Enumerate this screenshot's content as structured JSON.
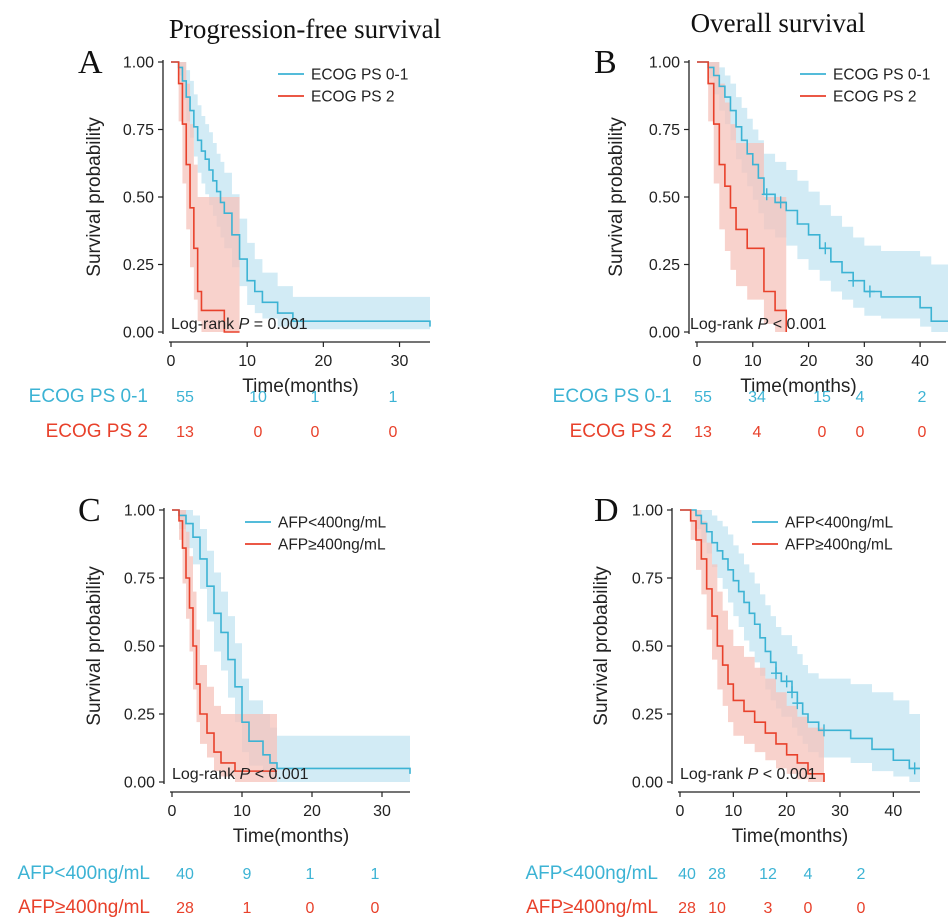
{
  "column_titles": [
    "Progression-free survival",
    "Overall survival"
  ],
  "colors": {
    "group1": "#3cb3d4",
    "group2": "#e8412b",
    "band1": "#bfe3f1",
    "band2": "#f6c3bb"
  },
  "chart_data": [
    {
      "type": "line",
      "letter": "A",
      "xlabel": "Time(months)",
      "ylabel": "Survival probability",
      "xlim": [
        0,
        34
      ],
      "ylim": [
        0,
        1
      ],
      "xticks": [
        0,
        10,
        20,
        30
      ],
      "yticks": [
        "0.00",
        "0.25",
        "0.50",
        "0.75",
        "1.00"
      ],
      "legend_position": "top-right",
      "logrank": {
        "prefix": "Log-rank",
        "p": "P",
        "value": " = 0.001"
      },
      "series": [
        {
          "name": "ECOG PS 0-1",
          "color": "#3cb3d4",
          "x": [
            0,
            1,
            1.5,
            2,
            2.5,
            3,
            3.5,
            4,
            4.5,
            5,
            5.5,
            6,
            6.5,
            7,
            8,
            9,
            10,
            11,
            12,
            14,
            16,
            34
          ],
          "y": [
            1.0,
            0.98,
            0.93,
            0.87,
            0.82,
            0.76,
            0.71,
            0.67,
            0.64,
            0.6,
            0.56,
            0.52,
            0.48,
            0.44,
            0.36,
            0.27,
            0.19,
            0.15,
            0.11,
            0.07,
            0.04,
            0.02
          ],
          "ci_upper": [
            1.0,
            1.0,
            1.0,
            0.97,
            0.93,
            0.88,
            0.84,
            0.8,
            0.77,
            0.74,
            0.7,
            0.66,
            0.63,
            0.59,
            0.51,
            0.42,
            0.33,
            0.27,
            0.22,
            0.17,
            0.13,
            0.12
          ],
          "ci_lower": [
            1.0,
            0.95,
            0.86,
            0.78,
            0.72,
            0.65,
            0.59,
            0.55,
            0.51,
            0.47,
            0.43,
            0.39,
            0.35,
            0.31,
            0.24,
            0.17,
            0.1,
            0.07,
            0.05,
            0.02,
            0.01,
            0.0
          ]
        },
        {
          "name": "ECOG PS 2",
          "color": "#e8412b",
          "x": [
            0,
            1,
            1.5,
            2,
            2.5,
            3,
            3.5,
            4,
            7,
            9
          ],
          "y": [
            1.0,
            0.92,
            0.77,
            0.62,
            0.46,
            0.31,
            0.15,
            0.08,
            0.0,
            0.0
          ],
          "ci_upper": [
            1.0,
            1.0,
            1.0,
            0.92,
            0.77,
            0.62,
            0.5,
            0.5,
            0.5,
            0.5
          ],
          "ci_lower": [
            1.0,
            0.78,
            0.55,
            0.38,
            0.24,
            0.12,
            0.04,
            0.0,
            0.0,
            0.0
          ]
        }
      ],
      "risk_table": {
        "times": [
          0,
          10,
          20,
          30
        ],
        "rows": [
          {
            "label": "ECOG PS 0-1",
            "color": "#3cb3d4",
            "values": [
              "55",
              "10",
              "1",
              "1"
            ]
          },
          {
            "label": "ECOG PS 2",
            "color": "#e8412b",
            "values": [
              "13",
              "0",
              "0",
              "0"
            ]
          }
        ]
      }
    },
    {
      "type": "line",
      "letter": "B",
      "xlabel": "Time(months)",
      "ylabel": "Survival probability",
      "xlim": [
        0,
        45
      ],
      "ylim": [
        0,
        1
      ],
      "xticks": [
        0,
        10,
        20,
        30,
        40
      ],
      "yticks": [
        "0.00",
        "0.25",
        "0.50",
        "0.75",
        "1.00"
      ],
      "legend_position": "top-right",
      "logrank": {
        "prefix": "Log-rank",
        "p": "P",
        "value": " < 0.001"
      },
      "series": [
        {
          "name": "ECOG PS 0-1",
          "color": "#3cb3d4",
          "x": [
            0,
            2,
            3,
            4,
            5,
            6,
            7,
            8,
            9,
            10,
            11,
            12,
            14,
            16,
            18,
            20,
            22,
            24,
            26,
            28,
            30,
            33,
            36,
            40,
            42,
            45
          ],
          "y": [
            1.0,
            0.98,
            0.95,
            0.91,
            0.87,
            0.82,
            0.76,
            0.71,
            0.66,
            0.62,
            0.57,
            0.51,
            0.48,
            0.45,
            0.4,
            0.36,
            0.31,
            0.26,
            0.22,
            0.19,
            0.15,
            0.13,
            0.13,
            0.09,
            0.04,
            0.04
          ],
          "ci_upper": [
            1.0,
            1.0,
            1.0,
            0.98,
            0.95,
            0.92,
            0.87,
            0.83,
            0.79,
            0.75,
            0.71,
            0.66,
            0.63,
            0.6,
            0.56,
            0.52,
            0.47,
            0.43,
            0.39,
            0.35,
            0.32,
            0.3,
            0.3,
            0.28,
            0.25,
            0.25
          ],
          "ci_lower": [
            1.0,
            0.94,
            0.88,
            0.82,
            0.77,
            0.71,
            0.64,
            0.59,
            0.54,
            0.49,
            0.44,
            0.38,
            0.35,
            0.32,
            0.27,
            0.23,
            0.19,
            0.15,
            0.12,
            0.09,
            0.06,
            0.05,
            0.05,
            0.02,
            0.0,
            0.0
          ],
          "censor_x": [
            12.5,
            15,
            23,
            28,
            31
          ]
        },
        {
          "name": "ECOG PS 2",
          "color": "#e8412b",
          "x": [
            0,
            2,
            3,
            4,
            5,
            6,
            7,
            9,
            12,
            14,
            16
          ],
          "y": [
            1.0,
            0.92,
            0.77,
            0.62,
            0.54,
            0.46,
            0.38,
            0.31,
            0.15,
            0.08,
            0.0
          ],
          "ci_upper": [
            1.0,
            1.0,
            1.0,
            0.92,
            0.85,
            0.77,
            0.7,
            0.7,
            0.5,
            0.5,
            0.5
          ],
          "ci_lower": [
            1.0,
            0.78,
            0.55,
            0.38,
            0.3,
            0.23,
            0.17,
            0.12,
            0.03,
            0.0,
            0.0
          ]
        }
      ],
      "risk_table": {
        "times": [
          0,
          10,
          20,
          30,
          40
        ],
        "rows": [
          {
            "label": "ECOG PS 0-1",
            "color": "#3cb3d4",
            "values": [
              "55",
              "34",
              "15",
              "4",
              "2"
            ]
          },
          {
            "label": "ECOG PS 2",
            "color": "#e8412b",
            "values": [
              "13",
              "4",
              "0",
              "0",
              "0"
            ]
          }
        ]
      }
    },
    {
      "type": "line",
      "letter": "C",
      "xlabel": "Time(months)",
      "ylabel": "Survival probability",
      "xlim": [
        0,
        34
      ],
      "ylim": [
        0,
        1
      ],
      "xticks": [
        0,
        10,
        20,
        30
      ],
      "yticks": [
        "0.00",
        "0.25",
        "0.50",
        "0.75",
        "1.00"
      ],
      "legend_position": "top-right",
      "logrank": {
        "prefix": "Log-rank",
        "p": "P",
        "value": " < 0.001"
      },
      "series": [
        {
          "name": "AFP<400ng/mL",
          "color": "#3cb3d4",
          "x": [
            0,
            1,
            2,
            3,
            4,
            5,
            6,
            7,
            8,
            9,
            10,
            11,
            13,
            14,
            15,
            34
          ],
          "y": [
            1.0,
            0.98,
            0.95,
            0.9,
            0.82,
            0.72,
            0.62,
            0.55,
            0.45,
            0.35,
            0.22,
            0.15,
            0.1,
            0.07,
            0.05,
            0.03
          ],
          "ci_upper": [
            1.0,
            1.0,
            1.0,
            0.98,
            0.93,
            0.85,
            0.77,
            0.7,
            0.61,
            0.51,
            0.38,
            0.3,
            0.25,
            0.2,
            0.17,
            0.17
          ],
          "ci_lower": [
            1.0,
            0.93,
            0.86,
            0.8,
            0.71,
            0.59,
            0.48,
            0.41,
            0.31,
            0.22,
            0.11,
            0.06,
            0.03,
            0.01,
            0.0,
            0.0
          ]
        },
        {
          "name": "AFP≥400ng/mL",
          "color": "#e8412b",
          "x": [
            0,
            1,
            1.5,
            2,
            2.5,
            3,
            3.5,
            4,
            5,
            6,
            7,
            9,
            15
          ],
          "y": [
            1.0,
            0.96,
            0.86,
            0.75,
            0.64,
            0.5,
            0.36,
            0.25,
            0.18,
            0.11,
            0.07,
            0.04,
            0.04
          ],
          "ci_upper": [
            1.0,
            1.0,
            1.0,
            0.92,
            0.83,
            0.7,
            0.56,
            0.43,
            0.35,
            0.28,
            0.25,
            0.25,
            0.25
          ],
          "ci_lower": [
            1.0,
            0.89,
            0.73,
            0.6,
            0.48,
            0.34,
            0.22,
            0.14,
            0.09,
            0.04,
            0.02,
            0.0,
            0.0
          ]
        }
      ],
      "risk_table": {
        "times": [
          0,
          10,
          20,
          30
        ],
        "rows": [
          {
            "label": "AFP<400ng/mL",
            "color": "#3cb3d4",
            "values": [
              "40",
              "9",
              "1",
              "1"
            ]
          },
          {
            "label": "AFP≥400ng/mL",
            "color": "#e8412b",
            "values": [
              "28",
              "1",
              "0",
              "0"
            ]
          }
        ]
      }
    },
    {
      "type": "line",
      "letter": "D",
      "xlabel": "Time(months)",
      "ylabel": "Survival probability",
      "xlim": [
        0,
        45
      ],
      "ylim": [
        0,
        1
      ],
      "xticks": [
        0,
        10,
        20,
        30,
        40
      ],
      "yticks": [
        "0.00",
        "0.25",
        "0.50",
        "0.75",
        "1.00"
      ],
      "legend_position": "top-right",
      "logrank": {
        "prefix": "Log-rank",
        "p": "P",
        "value": " < 0.001"
      },
      "series": [
        {
          "name": "AFP<400ng/mL",
          "color": "#3cb3d4",
          "x": [
            0,
            3,
            4,
            5,
            6,
            7,
            8,
            9,
            10,
            11,
            12,
            13,
            14,
            15,
            16,
            17,
            18,
            19,
            20,
            21,
            22,
            23,
            24,
            26,
            28,
            30,
            32,
            36,
            40,
            43,
            45
          ],
          "y": [
            1.0,
            0.98,
            0.95,
            0.92,
            0.88,
            0.85,
            0.82,
            0.78,
            0.74,
            0.7,
            0.66,
            0.62,
            0.58,
            0.53,
            0.48,
            0.44,
            0.4,
            0.37,
            0.37,
            0.33,
            0.29,
            0.25,
            0.22,
            0.19,
            0.19,
            0.19,
            0.16,
            0.12,
            0.08,
            0.05,
            0.05
          ],
          "ci_upper": [
            1.0,
            1.0,
            1.0,
            1.0,
            0.98,
            0.96,
            0.94,
            0.91,
            0.87,
            0.84,
            0.8,
            0.77,
            0.73,
            0.69,
            0.65,
            0.61,
            0.57,
            0.54,
            0.54,
            0.5,
            0.47,
            0.43,
            0.4,
            0.38,
            0.38,
            0.38,
            0.36,
            0.33,
            0.3,
            0.25,
            0.25
          ],
          "ci_lower": [
            1.0,
            0.93,
            0.88,
            0.84,
            0.79,
            0.75,
            0.71,
            0.66,
            0.61,
            0.57,
            0.52,
            0.48,
            0.44,
            0.39,
            0.34,
            0.3,
            0.27,
            0.24,
            0.24,
            0.2,
            0.17,
            0.14,
            0.11,
            0.09,
            0.09,
            0.09,
            0.07,
            0.04,
            0.02,
            0.0,
            0.0
          ],
          "censor_x": [
            18,
            20,
            21,
            22,
            27,
            44
          ]
        },
        {
          "name": "AFP≥400ng/mL",
          "color": "#e8412b",
          "x": [
            0,
            2,
            3,
            4,
            5,
            6,
            7,
            8,
            9,
            10,
            12,
            14,
            16,
            18,
            20,
            22,
            24,
            27
          ],
          "y": [
            1.0,
            0.96,
            0.89,
            0.82,
            0.71,
            0.61,
            0.5,
            0.43,
            0.36,
            0.3,
            0.26,
            0.22,
            0.18,
            0.14,
            0.1,
            0.07,
            0.03,
            0.0
          ],
          "ci_upper": [
            1.0,
            1.0,
            1.0,
            0.96,
            0.88,
            0.8,
            0.7,
            0.63,
            0.56,
            0.5,
            0.46,
            0.42,
            0.38,
            0.33,
            0.28,
            0.24,
            0.2,
            0.2
          ],
          "ci_lower": [
            1.0,
            0.89,
            0.78,
            0.69,
            0.56,
            0.45,
            0.34,
            0.28,
            0.22,
            0.17,
            0.14,
            0.11,
            0.08,
            0.05,
            0.03,
            0.01,
            0.0,
            0.0
          ]
        }
      ],
      "risk_table": {
        "times": [
          0,
          10,
          20,
          30,
          40
        ],
        "rows": [
          {
            "label": "AFP<400ng/mL",
            "color": "#3cb3d4",
            "values": [
              "40",
              "28",
              "12",
              "4",
              "2"
            ]
          },
          {
            "label": "AFP≥400ng/mL",
            "color": "#e8412b",
            "values": [
              "28",
              "10",
              "3",
              "0",
              "0"
            ]
          }
        ]
      }
    }
  ]
}
